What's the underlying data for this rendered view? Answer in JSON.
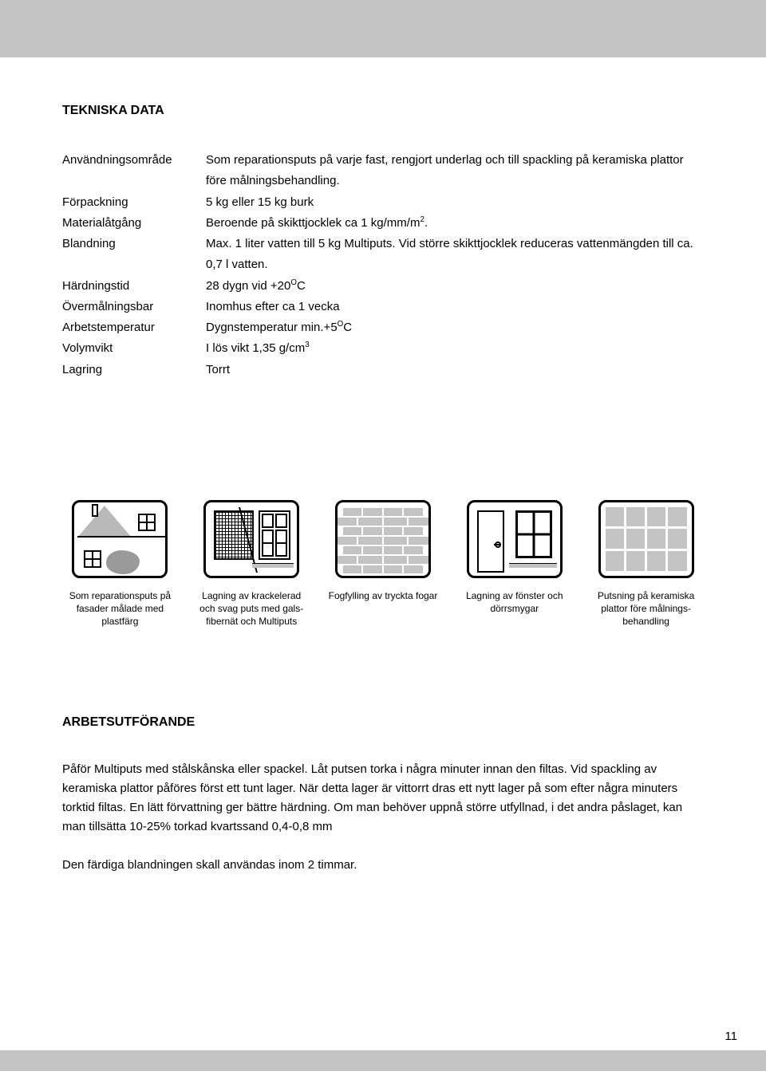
{
  "colors": {
    "bar_gray": "#c3c3c3",
    "icon_fill_gray": "#c3c3c3",
    "text": "#000000",
    "bg": "#ffffff"
  },
  "page_number": "11",
  "tekniska_data": {
    "heading": "TEKNISKA DATA",
    "rows": [
      {
        "label": "Användningsområde",
        "value_html": "Som reparationsputs på varje fast, rengjort underlag och till spackling på keramiska plattor före målningsbehandling."
      },
      {
        "label": "Förpackning",
        "value_html": "5 kg eller 15 kg burk"
      },
      {
        "label": "Materialåtgång",
        "value_html": "Beroende på skikttjocklek ca 1 kg/mm/m<sup class=\"small\">2</sup>."
      },
      {
        "label": "Blandning",
        "value_html": "Max. 1 liter vatten till 5 kg Multiputs. Vid större skikttjocklek reduceras vattenmängden till ca. 0,7 l vatten."
      },
      {
        "label": "Härdningstid",
        "value_html": "28 dygn vid +20<sup class=\"small\">O</sup>C"
      },
      {
        "label": "Övermålningsbar",
        "value_html": "Inomhus efter ca 1 vecka"
      },
      {
        "label": "Arbetstemperatur",
        "value_html": "Dygnstemperatur min.+5<sup class=\"small\">O</sup>C"
      },
      {
        "label": "Volymvikt",
        "value_html": "I lös vikt 1,35 g/cm<sup class=\"small\">3</sup>"
      },
      {
        "label": "Lagring",
        "value_html": "Torrt"
      }
    ]
  },
  "icons": [
    {
      "caption": "Som reparationsputs på fasader målade med plastfärg"
    },
    {
      "caption": "Lagning av krackelerad och svag puts med gals-fibernät och Multiputs"
    },
    {
      "caption": "Fogfylling av tryckta fogar"
    },
    {
      "caption": "Lagning av fönster och dörrsmygar"
    },
    {
      "caption": "Putsning på keramiska plattor före målnings-behandling"
    }
  ],
  "arbetsutforande": {
    "heading": "ARBETSUTFÖRANDE",
    "p1": "Påför Multiputs med stålskånska eller spackel. Låt putsen torka i några minuter innan den filtas. Vid spackling av keramiska plattor påföres först ett tunt lager. När detta lager är vittorrt dras ett nytt lager på som efter några minuters torktid filtas. En lätt förvattning ger bättre härdning. Om man behöver uppnå större utfyllnad, i det andra påslaget, kan man tillsätta 10-25% torkad kvartssand 0,4-0,8 mm",
    "p2": "Den färdiga blandningen skall användas inom 2 timmar."
  }
}
